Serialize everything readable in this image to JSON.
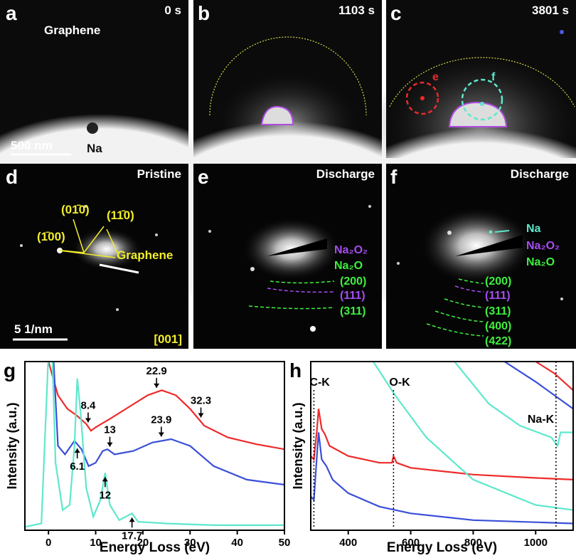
{
  "panels": [
    {
      "label": "a",
      "texts": [
        "0 s",
        "Graphene",
        "Na",
        "500 nm"
      ]
    },
    {
      "label": "b",
      "texts": [
        "1103 s"
      ]
    },
    {
      "label": "c",
      "texts": [
        "3801 s",
        "e",
        "f"
      ]
    },
    {
      "label": "d",
      "texts": [
        "Pristine",
        "(01̄0)",
        "(11̄0)",
        "(1̄00)",
        "Graphene",
        "5 1/nm",
        "[001]"
      ]
    },
    {
      "label": "e",
      "texts": [
        "Discharge",
        "Na₂O₂",
        "Na₂O",
        "(200)",
        "(111)",
        "(311)"
      ]
    },
    {
      "label": "f",
      "texts": [
        "Discharge",
        "Na",
        "Na₂O₂",
        "Na₂O",
        "(200)",
        "(111)",
        "(311)",
        "(400)",
        "(422)"
      ]
    }
  ],
  "chart_data": [
    {
      "type": "line",
      "label": "g",
      "xlabel": "Energy Loss (eV)",
      "ylabel": "Intensity (a.u.)",
      "xlim": [
        -5,
        50
      ],
      "xticks": [
        0,
        10,
        20,
        30,
        40,
        50
      ],
      "ylim": [
        0,
        100
      ],
      "series": [
        {
          "color": "#ee2a2a",
          "x": [
            -1,
            0,
            2,
            4,
            6,
            8,
            9,
            10,
            13,
            17,
            21,
            24,
            27,
            30,
            33,
            38,
            44,
            50
          ],
          "values": [
            105,
            100,
            80,
            72,
            68,
            63,
            59,
            61,
            66,
            73,
            80,
            83,
            80,
            72,
            62,
            55,
            51,
            48
          ],
          "peaks": [
            8.4,
            22.9,
            32.3
          ]
        },
        {
          "color": "#3a4fd8",
          "x": [
            1,
            2,
            3.5,
            5.5,
            7,
            8.5,
            10,
            11.5,
            12.5,
            14,
            18,
            22,
            26,
            30,
            35,
            42,
            50
          ],
          "values": [
            105,
            50,
            45,
            53,
            48,
            38,
            40,
            47,
            48,
            45,
            47,
            52,
            54,
            50,
            38,
            30,
            27
          ],
          "peaks": [
            6.1,
            13.0,
            23.9
          ]
        },
        {
          "color": "#5ee8cc",
          "x": [
            -5,
            -1.5,
            0,
            0.8,
            1.5,
            3,
            4.5,
            5.5,
            6.1,
            6.8,
            8,
            9.5,
            11,
            12,
            13,
            15,
            17.7,
            19,
            25,
            35,
            50
          ],
          "values": [
            2,
            4,
            105,
            105,
            40,
            12,
            15,
            50,
            90,
            70,
            25,
            8,
            18,
            34,
            15,
            6,
            10,
            5,
            4,
            3,
            3
          ],
          "peaks": [
            12.0,
            17.7
          ]
        }
      ]
    },
    {
      "type": "line",
      "label": "h",
      "xlabel": "Energy Loss (eV)",
      "ylabel": "Intensity (a.u.)",
      "xlim": [
        280,
        1120
      ],
      "xticks": [
        400,
        600,
        800,
        1000
      ],
      "ylim": [
        0,
        100
      ],
      "markers": [
        {
          "label": "C-K",
          "value": 290
        },
        {
          "label": "O-K",
          "value": 545
        },
        {
          "label": "Na-K",
          "value": 1065
        }
      ],
      "series": [
        {
          "color": "#ee2a2a",
          "x": [
            280,
            290,
            300,
            305,
            315,
            325,
            340,
            400,
            500,
            540,
            545,
            555,
            600,
            800,
            1000,
            1120
          ],
          "values": [
            44,
            42,
            60,
            72,
            60,
            57,
            50,
            44,
            40,
            40,
            44,
            40,
            37,
            33,
            31,
            30
          ]
        },
        {
          "color": "#ee2a2a",
          "x": [
            1000,
            1060,
            1120
          ],
          "values": [
            100,
            93,
            83
          ]
        },
        {
          "color": "#3a4fd8",
          "x": [
            280,
            290,
            300,
            305,
            315,
            330,
            350,
            400,
            500,
            600,
            800,
            1120
          ],
          "values": [
            20,
            18,
            45,
            58,
            42,
            38,
            30,
            22,
            14,
            10,
            6,
            4
          ]
        },
        {
          "color": "#3a4fd8",
          "x": [
            900,
            1000,
            1120
          ],
          "values": [
            100,
            88,
            72
          ]
        },
        {
          "color": "#5ee8cc",
          "x": [
            480,
            550,
            650,
            800,
            1000,
            1120
          ],
          "values": [
            100,
            80,
            55,
            30,
            15,
            12
          ]
        },
        {
          "color": "#5ee8cc",
          "x": [
            740,
            850,
            950,
            1050,
            1070,
            1080,
            1120
          ],
          "values": [
            100,
            75,
            62,
            55,
            50,
            58,
            58
          ]
        }
      ]
    }
  ]
}
